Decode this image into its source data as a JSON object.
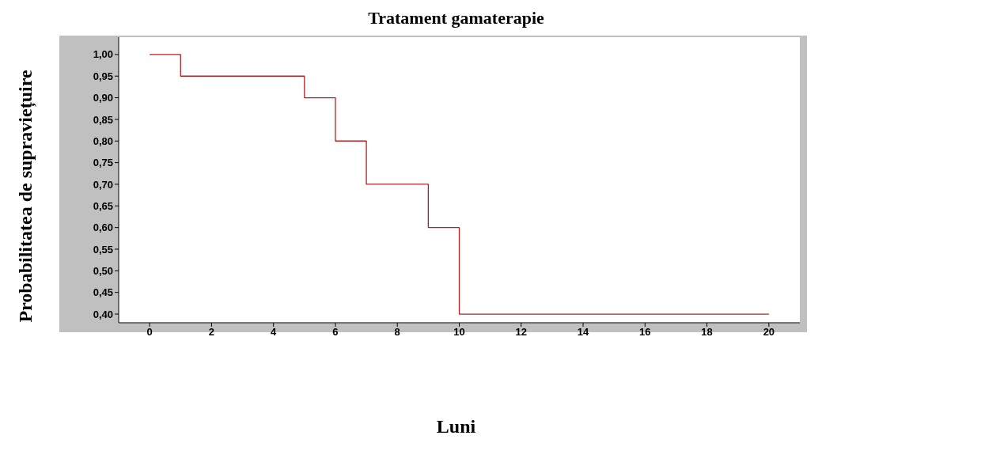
{
  "chart_data": {
    "type": "step",
    "title": "Tratament gamaterapie",
    "xlabel": "Luni",
    "ylabel": "Probabilitatea de supraviețuire",
    "x": [
      0,
      1,
      5,
      6,
      7,
      9,
      10,
      20
    ],
    "series": [
      {
        "color": "#b22222",
        "values": [
          1.0,
          0.95,
          0.9,
          0.8,
          0.7,
          0.6,
          0.4,
          0.4
        ]
      }
    ],
    "xlim": [
      -1,
      21
    ],
    "xticks": [
      0,
      2,
      4,
      6,
      8,
      10,
      12,
      14,
      16,
      18,
      20
    ],
    "ylim": [
      0.38,
      1.04
    ],
    "yticks": [
      {
        "value": 0.4,
        "label": "0,40"
      },
      {
        "value": 0.45,
        "label": "0,45"
      },
      {
        "value": 0.5,
        "label": "0,50"
      },
      {
        "value": 0.55,
        "label": "0,55"
      },
      {
        "value": 0.6,
        "label": "0,60"
      },
      {
        "value": 0.65,
        "label": "0,65"
      },
      {
        "value": 0.7,
        "label": "0,70"
      },
      {
        "value": 0.75,
        "label": "0,75"
      },
      {
        "value": 0.8,
        "label": "0,80"
      },
      {
        "value": 0.85,
        "label": "0,85"
      },
      {
        "value": 0.9,
        "label": "0,90"
      },
      {
        "value": 0.95,
        "label": "0,95"
      },
      {
        "value": 1.0,
        "label": "1,00"
      }
    ]
  }
}
